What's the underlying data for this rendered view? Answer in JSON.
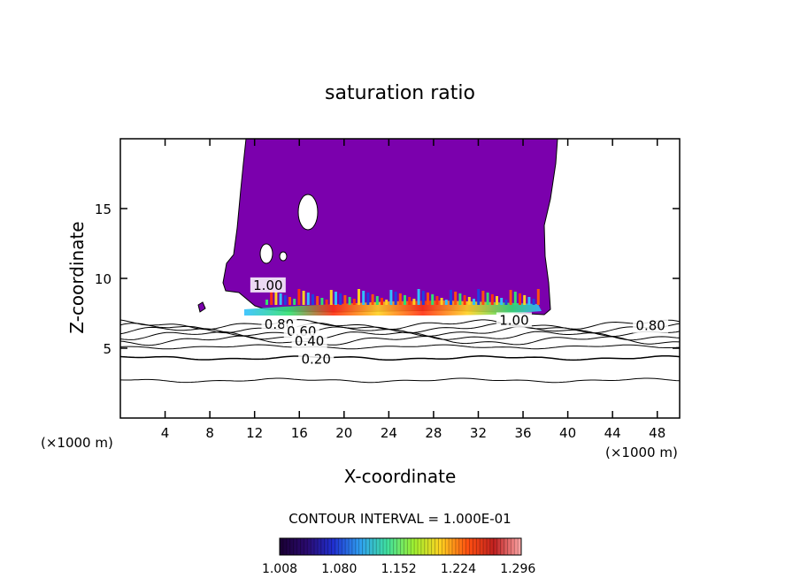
{
  "chart_data": {
    "type": "contour",
    "title": "saturation ratio",
    "xlabel": "X-coordinate",
    "ylabel": "Z-coordinate",
    "x_unit_left": "(×1000 m)",
    "x_unit_right": "(×1000 m)",
    "xlim": [
      0,
      50
    ],
    "ylim": [
      0,
      20
    ],
    "x_ticks": [
      4,
      8,
      12,
      16,
      20,
      24,
      28,
      32,
      36,
      40,
      44,
      48
    ],
    "y_ticks": [
      5,
      10,
      15
    ],
    "contour_interval_text": "CONTOUR INTERVAL = 1.000E-01",
    "contour_line_labels": [
      {
        "text": "1.00",
        "x": 13.2,
        "z": 9.5
      },
      {
        "text": "1.00",
        "x": 35.2,
        "z": 7.0
      },
      {
        "text": "0.80",
        "x": 14.2,
        "z": 6.7
      },
      {
        "text": "0.80",
        "x": 47.4,
        "z": 6.6
      },
      {
        "text": "0.60",
        "x": 16.2,
        "z": 6.2
      },
      {
        "text": "0.40",
        "x": 16.9,
        "z": 5.5
      },
      {
        "text": "0.20",
        "x": 17.5,
        "z": 4.2
      }
    ],
    "contour_levels": [
      {
        "level": 0.2,
        "z": 4.3
      },
      {
        "level": 0.3,
        "z": 2.7
      },
      {
        "level": 0.4,
        "z": 5.1
      },
      {
        "level": 0.5,
        "z": 5.55
      },
      {
        "level": 0.6,
        "z": 5.9
      },
      {
        "level": 0.7,
        "z": 6.2
      },
      {
        "level": 0.8,
        "z": 6.45
      },
      {
        "level": 0.9,
        "z": 6.7
      }
    ],
    "supersaturated_region": {
      "x": [
        11,
        38
      ],
      "z_bottom": 6.9,
      "z_top": 20,
      "base_value": 1.008
    },
    "colorbar": {
      "tick_labels": [
        "1.008",
        "1.080",
        "1.152",
        "1.224",
        "1.296"
      ],
      "range": [
        1.008,
        1.3
      ],
      "colors": [
        "#1a0033",
        "#2a0a6e",
        "#1f2fd0",
        "#2f9ff0",
        "#3fe0a0",
        "#9ff030",
        "#ffd020",
        "#ff5010",
        "#c02020",
        "#ffaaaa"
      ]
    }
  },
  "colors": {
    "cloud": "#7b00ad",
    "background": "#ffffff",
    "lines": "#000000"
  }
}
